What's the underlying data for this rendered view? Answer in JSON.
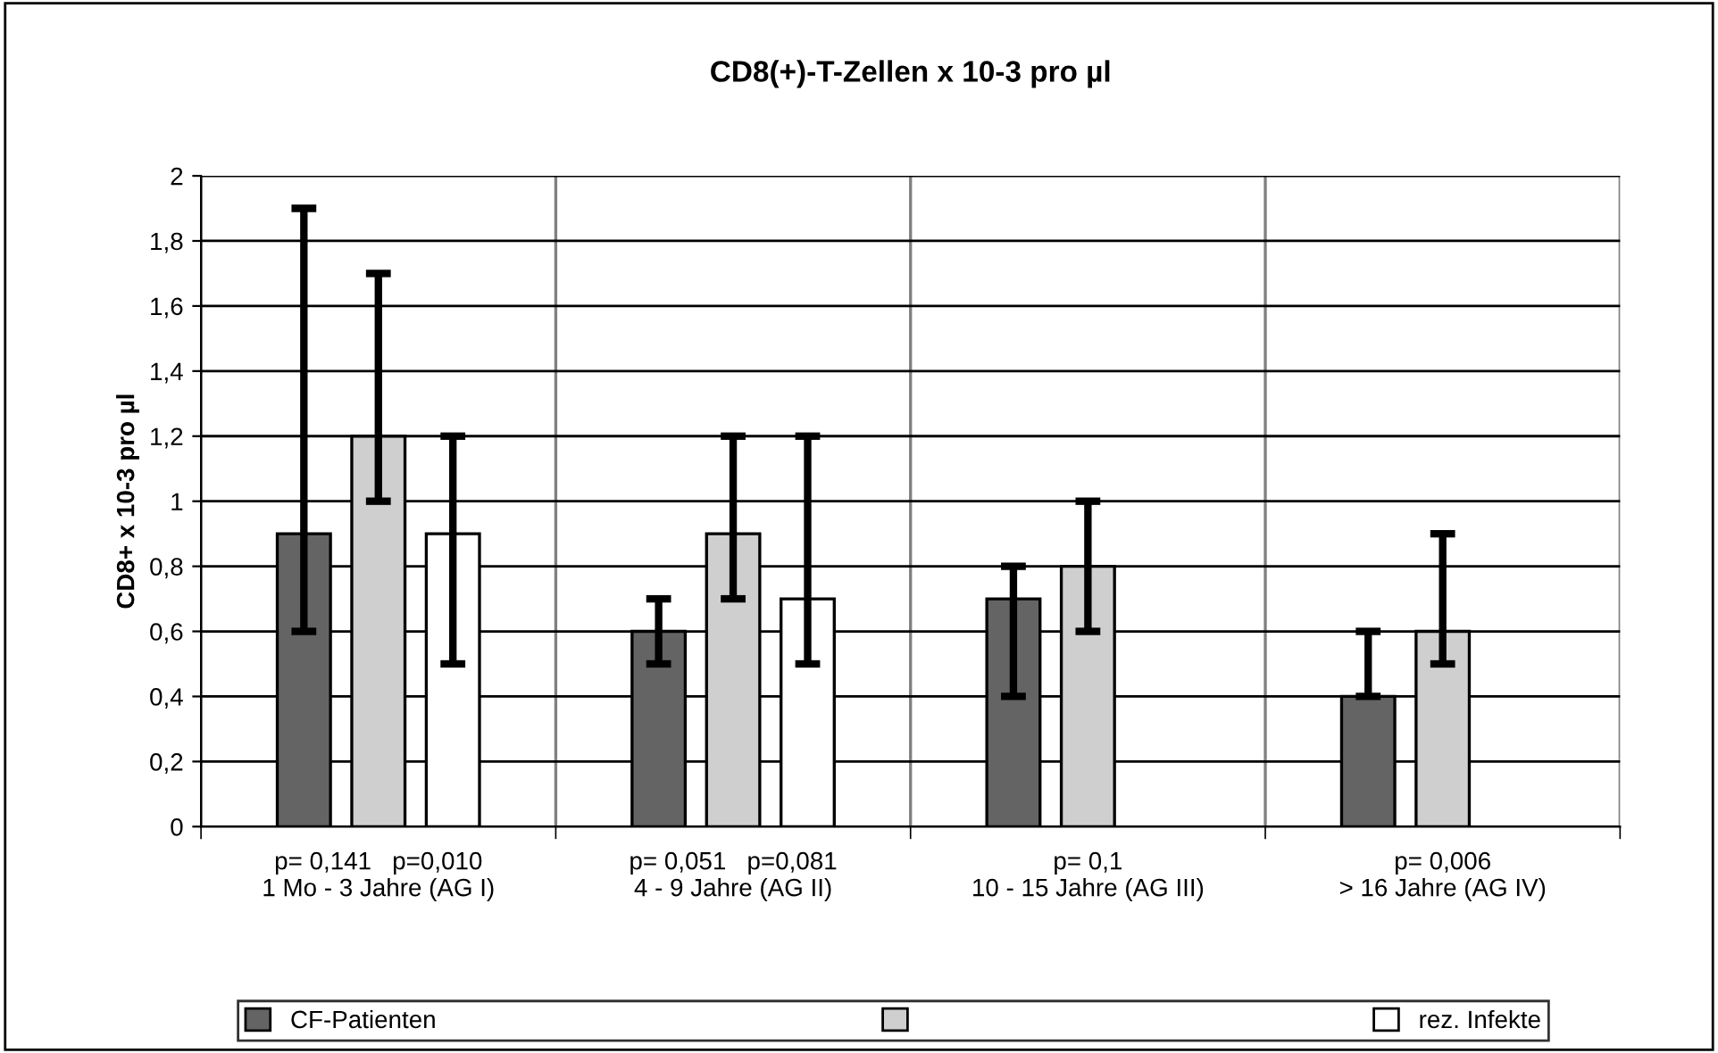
{
  "chart_data": {
    "type": "bar",
    "title": "CD8(+)-T-Zellen x 10-3 pro µl",
    "ylabel": "CD8+ x 10-3 pro µl",
    "categories": [
      "p= 0,141   p=0,010\n1 Mo - 3 Jahre (AG I)",
      "p= 0,051   p=0,081\n4 - 9 Jahre (AG II)",
      "p= 0,1\n10 - 15 Jahre (AG III)",
      "p= 0,006\n> 16 Jahre (AG IV)"
    ],
    "series": [
      {
        "name": "CF-Patienten",
        "color": "#646464",
        "values": [
          0.9,
          0.6,
          0.7,
          0.4
        ],
        "errors": [
          [
            0.6,
            1.9
          ],
          [
            0.5,
            0.7
          ],
          [
            0.4,
            0.8
          ],
          [
            0.4,
            0.6
          ]
        ]
      },
      {
        "color": "#cfcfcf",
        "values": [
          1.2,
          0.9,
          0.8,
          0.6
        ],
        "errors": [
          [
            1.0,
            1.7
          ],
          [
            0.7,
            1.2
          ],
          [
            0.6,
            1.0
          ],
          [
            0.5,
            0.9
          ]
        ]
      },
      {
        "name": "rez. Infekte",
        "color": "#ffffff",
        "values": [
          0.9,
          0.7,
          null,
          null
        ],
        "errors": [
          [
            0.5,
            1.2
          ],
          [
            0.5,
            1.2
          ],
          null,
          null
        ]
      }
    ],
    "ylim": [
      0,
      2
    ],
    "yticks": [
      0,
      {
        "value": 0.2,
        "label": "0,2"
      },
      {
        "value": 0.4,
        "label": "0,4"
      },
      {
        "value": 0.6,
        "label": "0,6"
      },
      {
        "value": 0.8,
        "label": "0,8"
      },
      1,
      {
        "value": 1.2,
        "label": "1,2"
      },
      {
        "value": 1.4,
        "label": "1,4"
      },
      {
        "value": 1.6,
        "label": "1,6"
      },
      {
        "value": 1.8,
        "label": "1,8"
      },
      2
    ],
    "grid": true,
    "legend": "bottom"
  }
}
